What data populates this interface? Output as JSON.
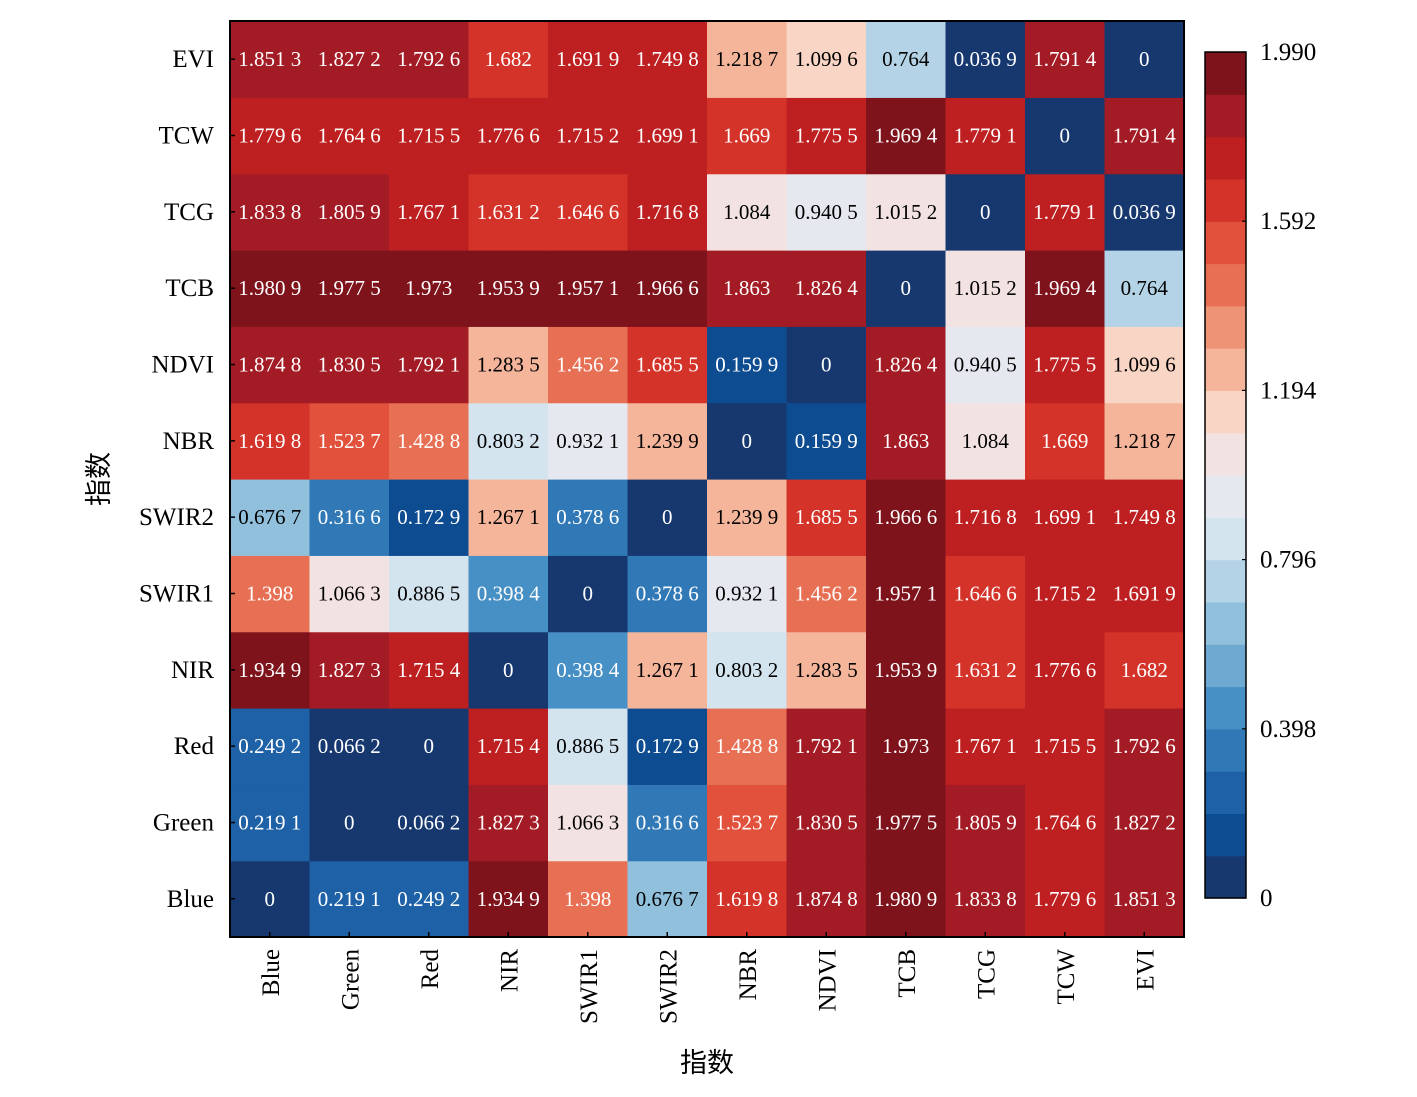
{
  "chart_data": {
    "type": "heatmap",
    "title": "",
    "xlabel": "指数",
    "ylabel": "指数",
    "labels": [
      "Blue",
      "Green",
      "Red",
      "NIR",
      "SWIR1",
      "SWIR2",
      "NBR",
      "NDVI",
      "TCB",
      "TCG",
      "TCW",
      "EVI"
    ],
    "x_order": "left-to-right",
    "y_order": "bottom-to-top",
    "matrix": [
      [
        0,
        0.2191,
        0.2492,
        1.9349,
        1.398,
        0.6767,
        1.6198,
        1.8748,
        1.9809,
        1.8338,
        1.7796,
        1.8513
      ],
      [
        0.2191,
        0,
        0.0662,
        1.8273,
        1.0663,
        0.3166,
        1.5237,
        1.8305,
        1.9775,
        1.8059,
        1.7646,
        1.8272
      ],
      [
        0.2492,
        0.0662,
        0,
        1.7154,
        0.8865,
        0.1729,
        1.4288,
        1.7921,
        1.973,
        1.7671,
        1.7155,
        1.7926
      ],
      [
        1.9349,
        1.8273,
        1.7154,
        0,
        0.3984,
        1.2671,
        0.8032,
        1.2835,
        1.9539,
        1.6312,
        1.7766,
        1.682
      ],
      [
        1.398,
        1.0663,
        0.8865,
        0.3984,
        0,
        0.3786,
        0.9321,
        1.4562,
        1.9571,
        1.6466,
        1.7152,
        1.6919
      ],
      [
        0.6767,
        0.3166,
        0.1729,
        1.2671,
        0.3786,
        0,
        1.2399,
        1.6855,
        1.9666,
        1.7168,
        1.6991,
        1.7498
      ],
      [
        1.6198,
        1.5237,
        1.4288,
        0.8032,
        0.9321,
        1.2399,
        0,
        0.1599,
        1.863,
        1.084,
        1.669,
        1.2187
      ],
      [
        1.8748,
        1.8305,
        1.7921,
        1.2835,
        1.4562,
        1.6855,
        0.1599,
        0,
        1.8264,
        0.9405,
        1.7755,
        1.0996
      ],
      [
        1.9809,
        1.9775,
        1.973,
        1.9539,
        1.9571,
        1.9666,
        1.863,
        1.8264,
        0,
        1.0152,
        1.9694,
        0.764
      ],
      [
        1.8338,
        1.8059,
        1.7671,
        1.6312,
        1.6466,
        1.7168,
        1.084,
        0.9405,
        1.0152,
        0,
        1.7791,
        0.0369
      ],
      [
        1.7796,
        1.7646,
        1.7155,
        1.7766,
        1.7152,
        1.6991,
        1.669,
        1.7755,
        1.9694,
        1.7791,
        0,
        1.7914
      ],
      [
        1.8513,
        1.8272,
        1.7926,
        1.682,
        1.6919,
        1.7498,
        1.2187,
        1.0996,
        0.764,
        0.0369,
        1.7914,
        0
      ]
    ],
    "cell_labels": [
      [
        "0",
        "0.219 1",
        "0.249 2",
        "1.934 9",
        "1.398",
        "0.676 7",
        "1.619 8",
        "1.874 8",
        "1.980 9",
        "1.833 8",
        "1.779 6",
        "1.851 3"
      ],
      [
        "0.219 1",
        "0",
        "0.066 2",
        "1.827 3",
        "1.066 3",
        "0.316 6",
        "1.523 7",
        "1.830 5",
        "1.977 5",
        "1.805 9",
        "1.764 6",
        "1.827 2"
      ],
      [
        "0.249 2",
        "0.066 2",
        "0",
        "1.715 4",
        "0.886 5",
        "0.172 9",
        "1.428 8",
        "1.792 1",
        "1.973",
        "1.767 1",
        "1.715 5",
        "1.792 6"
      ],
      [
        "1.934 9",
        "1.827 3",
        "1.715 4",
        "0",
        "0.398 4",
        "1.267 1",
        "0.803 2",
        "1.283 5",
        "1.953 9",
        "1.631 2",
        "1.776 6",
        "1.682"
      ],
      [
        "1.398",
        "1.066 3",
        "0.886 5",
        "0.398 4",
        "0",
        "0.378 6",
        "0.932 1",
        "1.456 2",
        "1.957 1",
        "1.646 6",
        "1.715 2",
        "1.691 9"
      ],
      [
        "0.676 7",
        "0.316 6",
        "0.172 9",
        "1.267 1",
        "0.378 6",
        "0",
        "1.239 9",
        "1.685 5",
        "1.966 6",
        "1.716 8",
        "1.699 1",
        "1.749 8"
      ],
      [
        "1.619 8",
        "1.523 7",
        "1.428 8",
        "0.803 2",
        "0.932 1",
        "1.239 9",
        "0",
        "0.159 9",
        "1.863",
        "1.084",
        "1.669",
        "1.218 7"
      ],
      [
        "1.874 8",
        "1.830 5",
        "1.792 1",
        "1.283 5",
        "1.456 2",
        "1.685 5",
        "0.159 9",
        "0",
        "1.826 4",
        "0.940 5",
        "1.775 5",
        "1.099 6"
      ],
      [
        "1.980 9",
        "1.977 5",
        "1.973",
        "1.953 9",
        "1.957 1",
        "1.966 6",
        "1.863",
        "1.826 4",
        "0",
        "1.015 2",
        "1.969 4",
        "0.764"
      ],
      [
        "1.833 8",
        "1.805 9",
        "1.767 1",
        "1.631 2",
        "1.646 6",
        "1.716 8",
        "1.084",
        "0.940 5",
        "1.015 2",
        "0",
        "1.779 1",
        "0.036 9"
      ],
      [
        "1.779 6",
        "1.764 6",
        "1.715 5",
        "1.776 6",
        "1.715 2",
        "1.699 1",
        "1.669",
        "1.775 5",
        "1.969 4",
        "1.779 1",
        "0",
        "1.791 4"
      ],
      [
        "1.851 3",
        "1.827 2",
        "1.792 6",
        "1.682",
        "1.691 9",
        "1.749 8",
        "1.218 7",
        "1.099 6",
        "0.764",
        "0.036 9",
        "1.791 4",
        "0"
      ]
    ],
    "colorbar": {
      "range": [
        0,
        1.99
      ],
      "ticks": [
        0,
        0.398,
        0.796,
        1.194,
        1.592,
        1.99
      ],
      "tick_labels": [
        "0",
        "0.398",
        "0.796",
        "1.194",
        "1.592",
        "1.990"
      ],
      "colormap": "RdBu_r",
      "levels": 20
    },
    "colormap_stops": [
      "#1b2f5e",
      "#0d4a8f",
      "#2369ad",
      "#3f8ac2",
      "#75afd3",
      "#a8cde3",
      "#d6e5f0",
      "#eeeaf0",
      "#f8d7c8",
      "#f3aa8c",
      "#e8775a",
      "#e04a35",
      "#c8201f",
      "#a11b24",
      "#6b0f18"
    ],
    "text_color_dark": "#000000",
    "text_color_light": "#ffffff",
    "grid": false,
    "legend": "colorbar-right"
  }
}
